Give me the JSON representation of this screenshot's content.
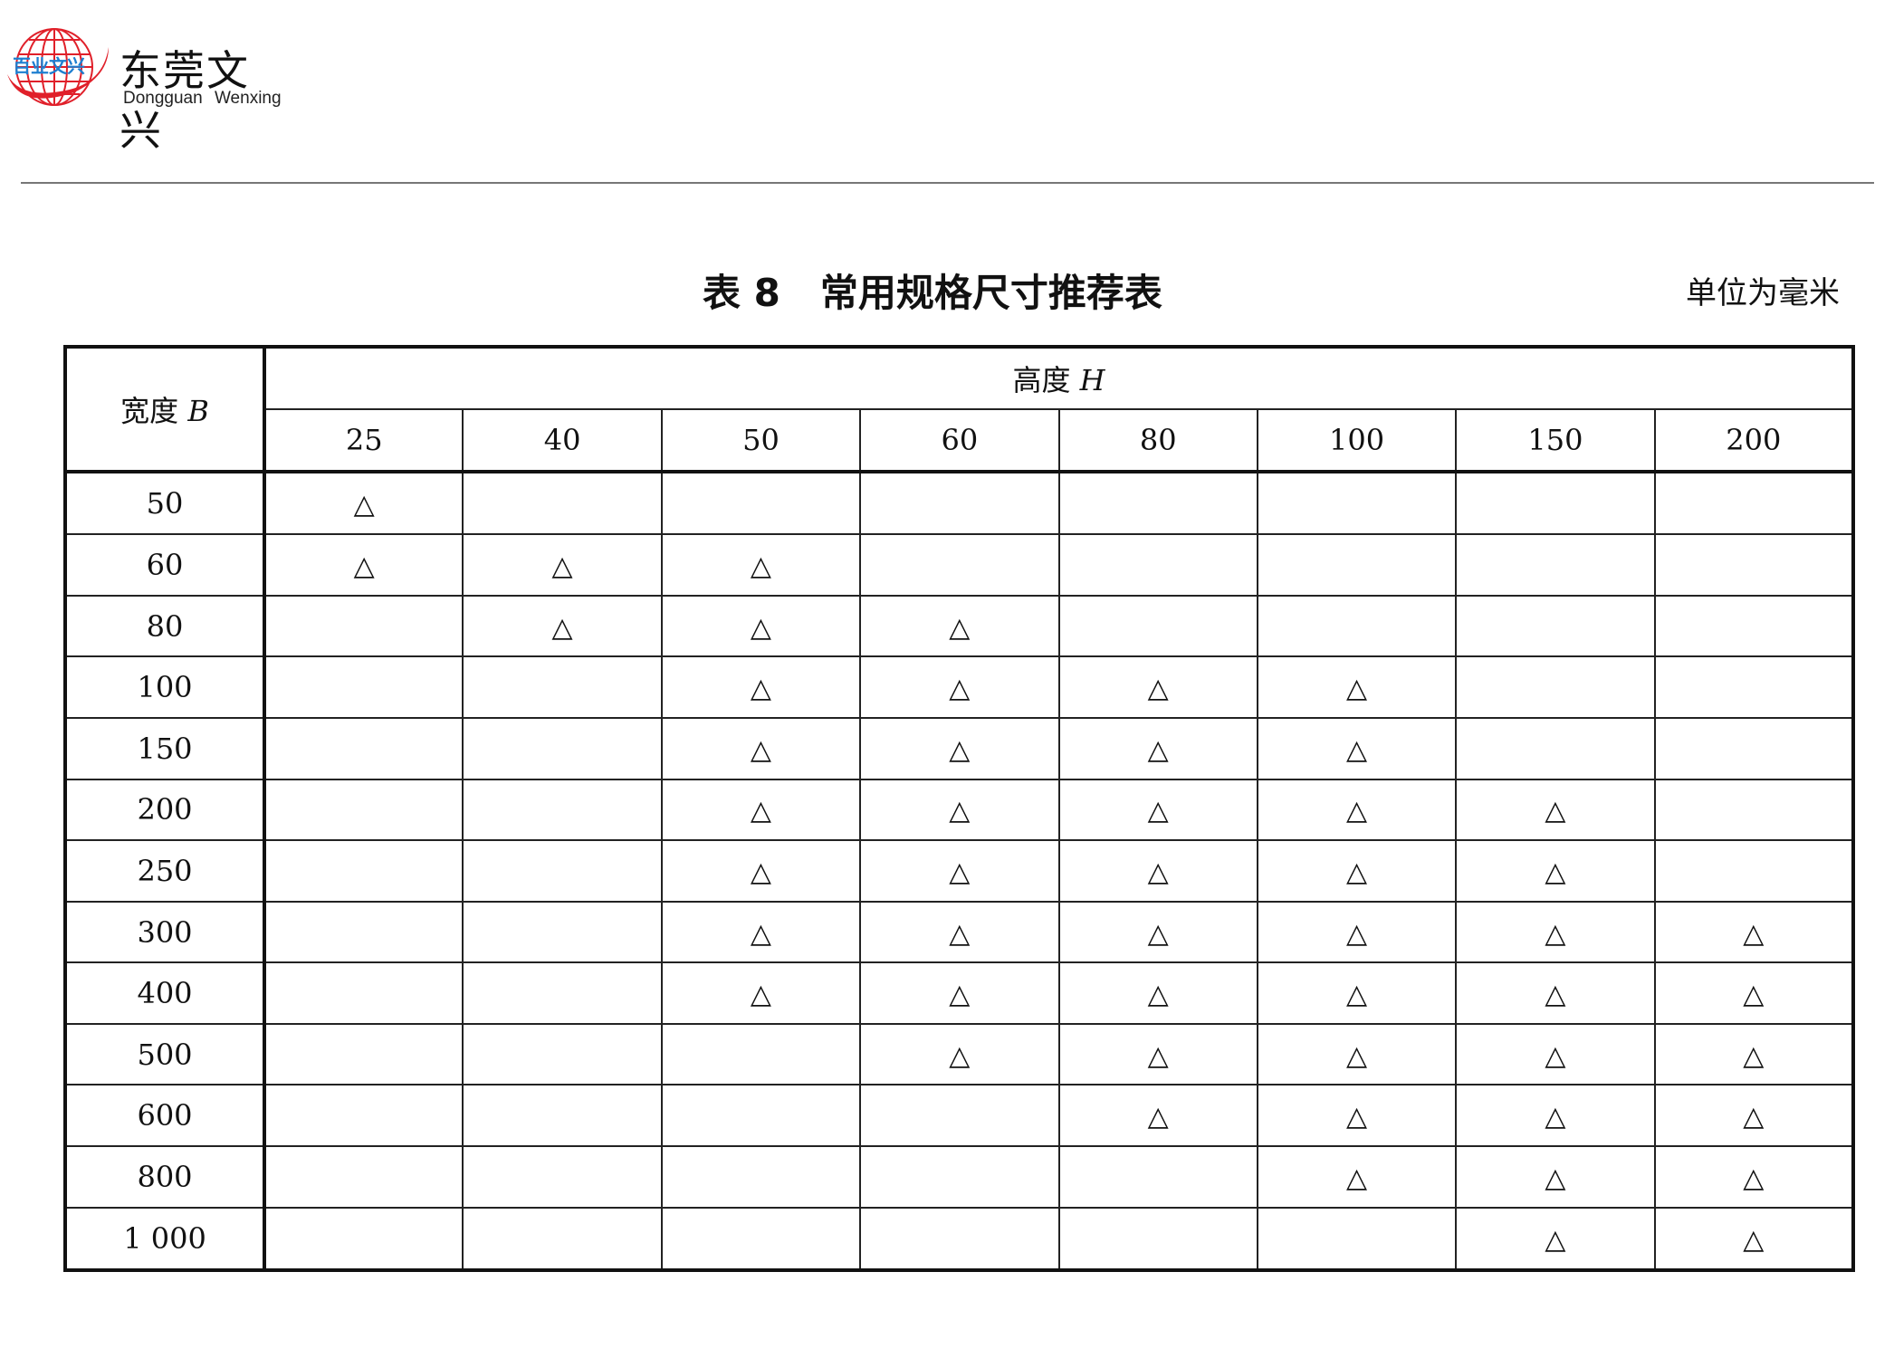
{
  "logo": {
    "text_cn": "东莞文兴",
    "text_en": "Dongguan  Wenxing",
    "globe_text": "百业文兴"
  },
  "title": {
    "number": "表 8",
    "text": "常用规格尺寸推荐表",
    "unit": "单位为毫米"
  },
  "table": {
    "width_header": "宽度",
    "width_symbol": "B",
    "height_header": "高度",
    "height_symbol": "H",
    "mark_symbol": "△",
    "heights": [
      "25",
      "40",
      "50",
      "60",
      "80",
      "100",
      "150",
      "200"
    ],
    "rows": [
      {
        "width": "50",
        "marks": [
          1,
          0,
          0,
          0,
          0,
          0,
          0,
          0
        ]
      },
      {
        "width": "60",
        "marks": [
          1,
          1,
          1,
          0,
          0,
          0,
          0,
          0
        ]
      },
      {
        "width": "80",
        "marks": [
          0,
          1,
          1,
          1,
          0,
          0,
          0,
          0
        ]
      },
      {
        "width": "100",
        "marks": [
          0,
          0,
          1,
          1,
          1,
          1,
          0,
          0
        ]
      },
      {
        "width": "150",
        "marks": [
          0,
          0,
          1,
          1,
          1,
          1,
          0,
          0
        ]
      },
      {
        "width": "200",
        "marks": [
          0,
          0,
          1,
          1,
          1,
          1,
          1,
          0
        ]
      },
      {
        "width": "250",
        "marks": [
          0,
          0,
          1,
          1,
          1,
          1,
          1,
          0
        ]
      },
      {
        "width": "300",
        "marks": [
          0,
          0,
          1,
          1,
          1,
          1,
          1,
          1
        ]
      },
      {
        "width": "400",
        "marks": [
          0,
          0,
          1,
          1,
          1,
          1,
          1,
          1
        ]
      },
      {
        "width": "500",
        "marks": [
          0,
          0,
          0,
          1,
          1,
          1,
          1,
          1
        ]
      },
      {
        "width": "600",
        "marks": [
          0,
          0,
          0,
          0,
          1,
          1,
          1,
          1
        ]
      },
      {
        "width": "800",
        "marks": [
          0,
          0,
          0,
          0,
          0,
          1,
          1,
          1
        ]
      },
      {
        "width": "1 000",
        "marks": [
          0,
          0,
          0,
          0,
          0,
          0,
          1,
          1
        ]
      }
    ]
  },
  "colors": {
    "logo_red": "#e0202a",
    "logo_blue": "#1e7fd0"
  }
}
